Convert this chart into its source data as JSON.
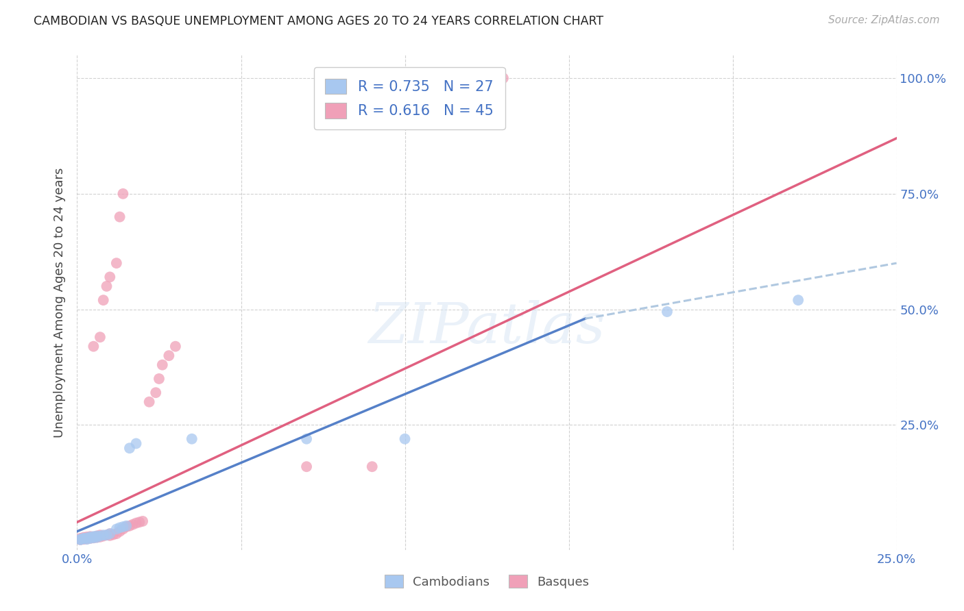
{
  "title": "CAMBODIAN VS BASQUE UNEMPLOYMENT AMONG AGES 20 TO 24 YEARS CORRELATION CHART",
  "source": "Source: ZipAtlas.com",
  "ylabel": "Unemployment Among Ages 20 to 24 years",
  "xlim": [
    0.0,
    0.25
  ],
  "ylim": [
    -0.02,
    1.05
  ],
  "xticks": [
    0.0,
    0.05,
    0.1,
    0.15,
    0.2,
    0.25
  ],
  "yticks": [
    0.25,
    0.5,
    0.75,
    1.0
  ],
  "xtick_labels": [
    "0.0%",
    "",
    "",
    "",
    "",
    "25.0%"
  ],
  "ytick_labels": [
    "25.0%",
    "50.0%",
    "75.0%",
    "100.0%"
  ],
  "background_color": "#ffffff",
  "cambodian_color": "#a8c8f0",
  "basque_color": "#f0a0b8",
  "cambodian_line_color": "#5580c8",
  "basque_line_color": "#e06080",
  "dashed_line_color": "#b0c8e0",
  "legend_r_cambodian": "0.735",
  "legend_n_cambodian": "27",
  "legend_r_basque": "0.616",
  "legend_n_basque": "45",
  "cambodian_scatter": [
    [
      0.001,
      0.002
    ],
    [
      0.001,
      0.003
    ],
    [
      0.002,
      0.004
    ],
    [
      0.002,
      0.005
    ],
    [
      0.003,
      0.003
    ],
    [
      0.003,
      0.006
    ],
    [
      0.004,
      0.005
    ],
    [
      0.004,
      0.008
    ],
    [
      0.005,
      0.006
    ],
    [
      0.005,
      0.009
    ],
    [
      0.006,
      0.007
    ],
    [
      0.006,
      0.01
    ],
    [
      0.007,
      0.01
    ],
    [
      0.008,
      0.012
    ],
    [
      0.009,
      0.012
    ],
    [
      0.01,
      0.015
    ],
    [
      0.012,
      0.025
    ],
    [
      0.013,
      0.028
    ],
    [
      0.014,
      0.03
    ],
    [
      0.015,
      0.032
    ],
    [
      0.016,
      0.2
    ],
    [
      0.018,
      0.21
    ],
    [
      0.035,
      0.22
    ],
    [
      0.07,
      0.22
    ],
    [
      0.1,
      0.22
    ],
    [
      0.18,
      0.495
    ],
    [
      0.22,
      0.52
    ]
  ],
  "basque_scatter": [
    [
      0.001,
      0.002
    ],
    [
      0.001,
      0.005
    ],
    [
      0.002,
      0.003
    ],
    [
      0.002,
      0.007
    ],
    [
      0.003,
      0.004
    ],
    [
      0.003,
      0.008
    ],
    [
      0.004,
      0.005
    ],
    [
      0.004,
      0.009
    ],
    [
      0.005,
      0.006
    ],
    [
      0.005,
      0.008
    ],
    [
      0.006,
      0.007
    ],
    [
      0.006,
      0.01
    ],
    [
      0.007,
      0.008
    ],
    [
      0.007,
      0.012
    ],
    [
      0.008,
      0.01
    ],
    [
      0.009,
      0.012
    ],
    [
      0.01,
      0.011
    ],
    [
      0.01,
      0.015
    ],
    [
      0.011,
      0.013
    ],
    [
      0.012,
      0.015
    ],
    [
      0.013,
      0.02
    ],
    [
      0.014,
      0.025
    ],
    [
      0.015,
      0.03
    ],
    [
      0.016,
      0.032
    ],
    [
      0.017,
      0.035
    ],
    [
      0.018,
      0.038
    ],
    [
      0.019,
      0.04
    ],
    [
      0.02,
      0.042
    ],
    [
      0.022,
      0.3
    ],
    [
      0.024,
      0.32
    ],
    [
      0.025,
      0.35
    ],
    [
      0.026,
      0.38
    ],
    [
      0.028,
      0.4
    ],
    [
      0.03,
      0.42
    ],
    [
      0.005,
      0.42
    ],
    [
      0.007,
      0.44
    ],
    [
      0.01,
      0.57
    ],
    [
      0.012,
      0.6
    ],
    [
      0.07,
      0.16
    ],
    [
      0.09,
      0.16
    ],
    [
      0.013,
      0.7
    ],
    [
      0.014,
      0.75
    ],
    [
      0.008,
      0.52
    ],
    [
      0.009,
      0.55
    ],
    [
      0.13,
      1.0
    ]
  ],
  "cambodian_regline_solid": [
    [
      0.0,
      0.02
    ],
    [
      0.155,
      0.48
    ]
  ],
  "cambodian_regline_dashed": [
    [
      0.155,
      0.48
    ],
    [
      0.25,
      0.6
    ]
  ],
  "basque_regline": [
    [
      0.0,
      0.04
    ],
    [
      0.25,
      0.87
    ]
  ]
}
